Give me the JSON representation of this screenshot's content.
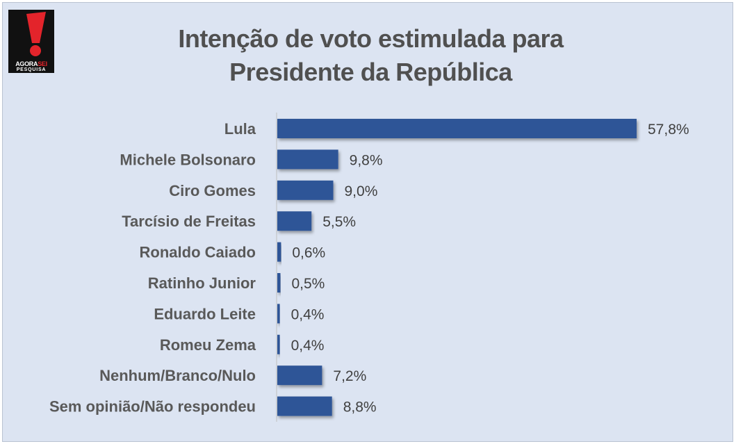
{
  "logo": {
    "brand_agora": "AGORA",
    "brand_sei": "SEI",
    "subtitle": "PESQUISA"
  },
  "chart_data": {
    "type": "bar",
    "orientation": "horizontal",
    "title_line1": "Intenção de voto estimulada para",
    "title_line2": "Presidente da República",
    "xlabel": "",
    "ylabel": "",
    "categories": [
      "Lula",
      "Michele Bolsonaro",
      "Ciro Gomes",
      "Tarcísio de Freitas",
      "Ronaldo Caiado",
      "Ratinho Junior",
      "Eduardo Leite",
      "Romeu Zema",
      "Nenhum/Branco/Nulo",
      "Sem opinião/Não respondeu"
    ],
    "values": [
      57.8,
      9.8,
      9.0,
      5.5,
      0.6,
      0.5,
      0.4,
      0.4,
      7.2,
      8.8
    ],
    "value_labels": [
      "57,8%",
      "9,8%",
      "9,0%",
      "5,5%",
      "0,6%",
      "0,5%",
      "0,4%",
      "0,4%",
      "7,2%",
      "8,8%"
    ],
    "xlim": [
      0,
      57.8
    ],
    "grid": false,
    "legend": "none",
    "colors": {
      "bar": "#2f5597",
      "background": "#dce4f2",
      "title": "#505050",
      "label": "#595959",
      "value": "#404040"
    }
  }
}
